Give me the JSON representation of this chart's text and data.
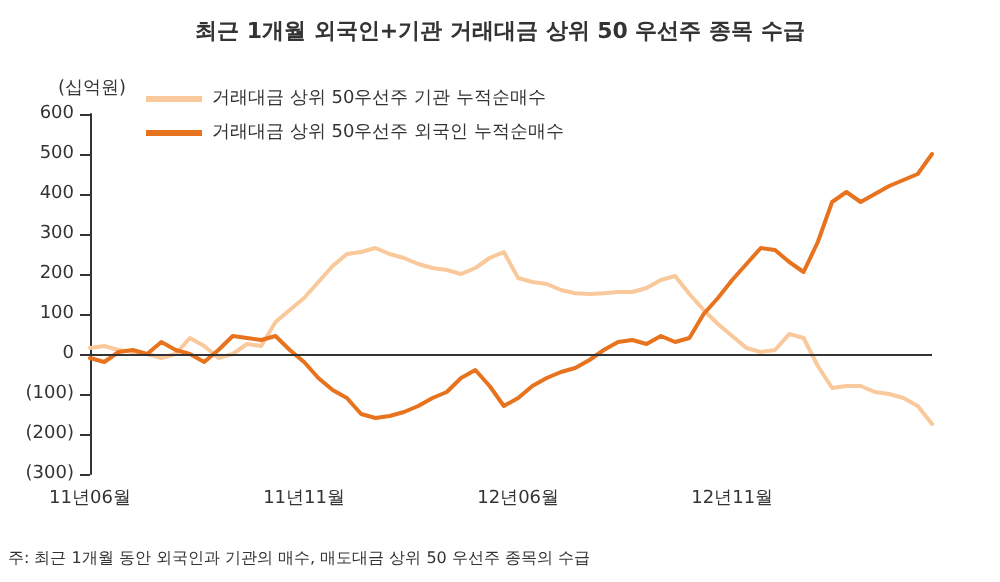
{
  "chart_data": {
    "type": "line",
    "title": "최근 1개월 외국인+기관 거래대금 상위 50 우선주 종목 수급",
    "ylabel": "(십억원)",
    "categories": [
      "11년06월",
      null,
      null,
      null,
      null,
      null,
      null,
      null,
      null,
      null,
      null,
      null,
      null,
      null,
      null,
      "11년11월",
      null,
      null,
      null,
      null,
      null,
      null,
      null,
      null,
      null,
      null,
      null,
      null,
      null,
      null,
      "12년06월",
      null,
      null,
      null,
      null,
      null,
      null,
      null,
      null,
      null,
      null,
      null,
      null,
      null,
      null,
      "12년11월",
      null,
      null,
      null,
      null,
      null,
      null,
      null,
      null,
      null,
      null,
      null,
      null,
      null,
      null
    ],
    "series": [
      {
        "name": "거래대금 상위 50우선주 기관 누적순매수",
        "color": "#f9c89b",
        "values": [
          15,
          20,
          10,
          5,
          0,
          -10,
          0,
          40,
          20,
          -10,
          0,
          25,
          20,
          80,
          110,
          140,
          180,
          220,
          250,
          255,
          265,
          250,
          240,
          225,
          215,
          210,
          200,
          215,
          240,
          255,
          190,
          180,
          175,
          160,
          152,
          150,
          152,
          155,
          155,
          165,
          185,
          195,
          150,
          110,
          75,
          45,
          15,
          5,
          10,
          50,
          40,
          -30,
          -85,
          -80,
          -80,
          -95,
          -100,
          -110,
          -130,
          -175
        ]
      },
      {
        "name": "거래대금 상위 50우선주 외국인 누적순매수",
        "color": "#e8731e",
        "values": [
          -10,
          -20,
          5,
          10,
          0,
          30,
          10,
          0,
          -20,
          10,
          45,
          40,
          35,
          45,
          10,
          -20,
          -60,
          -90,
          -110,
          -150,
          -160,
          -155,
          -145,
          -130,
          -110,
          -95,
          -60,
          -40,
          -80,
          -130,
          -110,
          -80,
          -60,
          -45,
          -35,
          -15,
          10,
          30,
          35,
          25,
          45,
          30,
          40,
          100,
          140,
          185,
          225,
          265,
          260,
          230,
          205,
          280,
          380,
          405,
          380,
          400,
          420,
          435,
          450,
          500
        ]
      }
    ],
    "ylim": [
      -300,
      600
    ],
    "yticks": [
      {
        "value": -300,
        "label": "(300)"
      },
      {
        "value": -200,
        "label": "(200)"
      },
      {
        "value": -100,
        "label": "(100)"
      },
      0,
      100,
      200,
      300,
      400,
      500,
      600
    ],
    "annotations": [
      "주: 최근 1개월 동안 외국인과 기관의 매수, 매도대금 상위 50 우선주 종목의 수급"
    ],
    "ref_lines": [
      {
        "axis": "y",
        "value": 0,
        "color": "#333333"
      }
    ],
    "legend": "top left",
    "grid": false,
    "marker": "none",
    "line_style": "solid"
  }
}
